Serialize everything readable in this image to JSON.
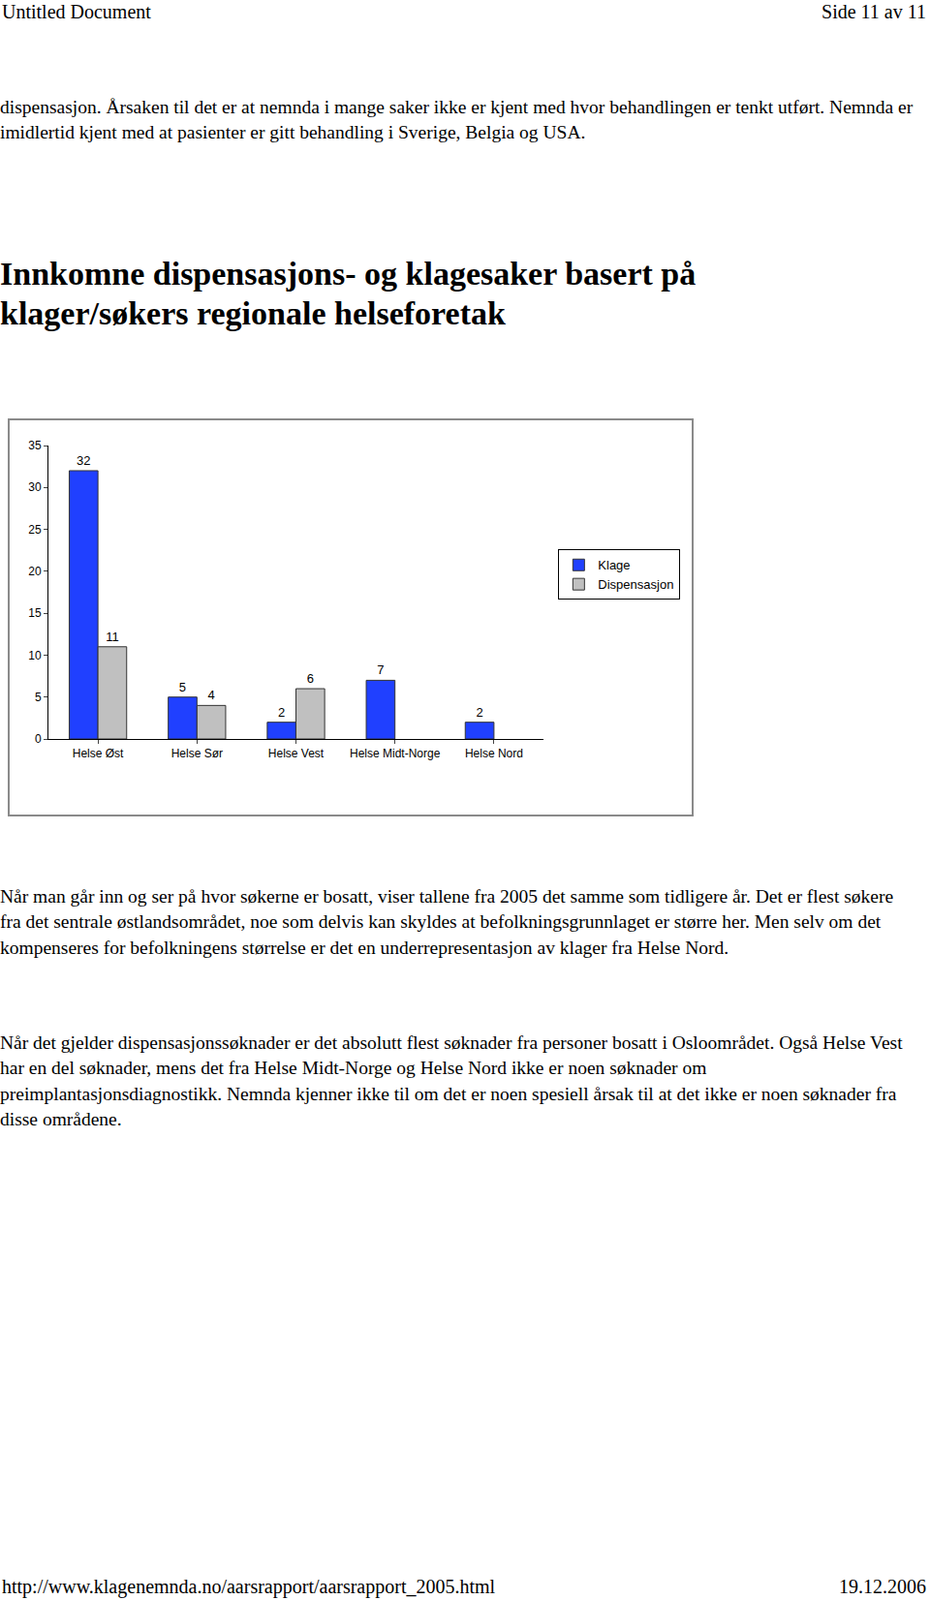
{
  "header": {
    "left": "Untitled Document",
    "right": "Side 11 av 11"
  },
  "intro": "dispensasjon. Årsaken til det er at nemnda i mange saker ikke er kjent med hvor behandlingen er tenkt utført. Nemnda er imidlertid kjent med at pasienter er gitt behandling i Sverige, Belgia og USA.",
  "heading": "Innkomne dispensasjons- og klagesaker basert på klager/søkers regionale helseforetak",
  "chart_data": {
    "type": "bar",
    "categories": [
      "Helse Øst",
      "Helse Sør",
      "Helse Vest",
      "Helse Midt-Norge",
      "Helse Nord"
    ],
    "series": [
      {
        "name": "Klage",
        "color": "#2040ff",
        "values": [
          32,
          5,
          2,
          7,
          2
        ]
      },
      {
        "name": "Dispensasjon",
        "color": "#c0c0c0",
        "values": [
          11,
          4,
          6,
          null,
          null
        ]
      }
    ],
    "ylim": [
      0,
      35
    ],
    "yticks": [
      0,
      5,
      10,
      15,
      20,
      25,
      30,
      35
    ],
    "grid": false,
    "data_labels": true,
    "legend": "right"
  },
  "paragraphs": [
    "Når man går inn og ser på hvor søkerne er bosatt, viser tallene fra 2005 det samme som tidligere år. Det er flest søkere fra det sentrale østlandsområdet, noe som delvis kan skyldes at befolkningsgrunnlaget er større her. Men selv om det kompenseres for befolkningens størrelse er det en underrepresentasjon av klager fra Helse Nord.",
    "Når det gjelder dispensasjonssøknader er det absolutt flest søknader fra personer bosatt i Osloområdet. Også Helse Vest har en del søknader, mens det fra Helse Midt-Norge og Helse Nord ikke er noen søknader om preimplantasjonsdiagnostikk. Nemnda kjenner ikke til om det er noen spesiell årsak til at det ikke er noen søknader fra disse områdene."
  ],
  "footer": {
    "left": "http://www.klagenemnda.no/aarsrapport/aarsrapport_2005.html",
    "right": "19.12.2006"
  }
}
